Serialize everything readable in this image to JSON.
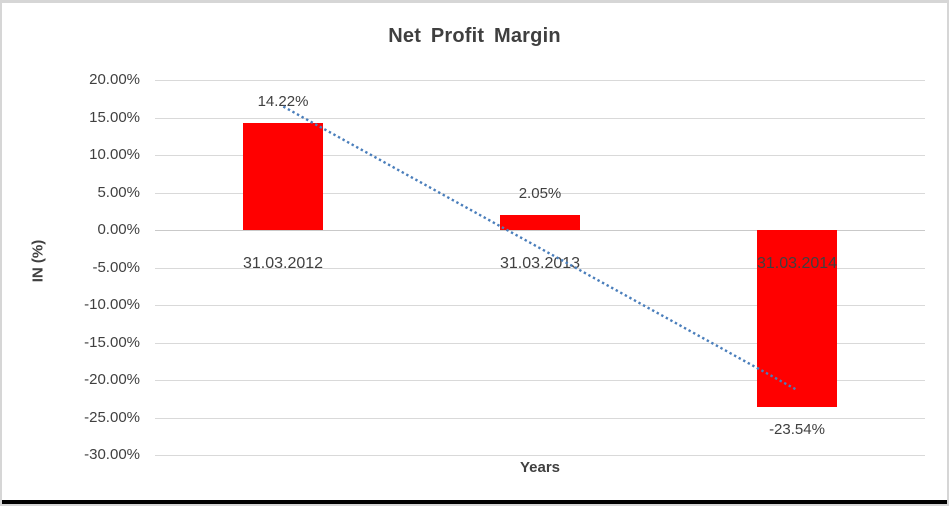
{
  "chart_data": {
    "type": "bar",
    "title": "Net Profit Margin",
    "xlabel": "Years",
    "ylabel": "IN (%)",
    "categories": [
      "31.03.2012",
      "31.03.2013",
      "31.03.2014"
    ],
    "values": [
      14.22,
      2.05,
      -23.54
    ],
    "data_labels": [
      "14.22%",
      "2.05%",
      "-23.54%"
    ],
    "ylim": [
      -30,
      20
    ],
    "ytick_step": 5,
    "ytick_values": [
      20,
      15,
      10,
      5,
      0,
      -5,
      -10,
      -15,
      -20,
      -25,
      -30
    ],
    "ytick_labels": [
      "20.00%",
      "15.00%",
      "10.00%",
      "5.00%",
      "0.00%",
      "-5.00%",
      "-10.00%",
      "-15.00%",
      "-20.00%",
      "-25.00%",
      "-30.00%"
    ],
    "grid": true,
    "legend": "none",
    "trendline": {
      "type": "linear",
      "style": "dotted"
    }
  },
  "colors": {
    "bar": "#ff0000",
    "trendline": "#4a7ebb",
    "gridline": "#d9d9d9",
    "text": "#404040",
    "frame_border": "#d6d6d6",
    "bottom_bar": "#000000"
  }
}
